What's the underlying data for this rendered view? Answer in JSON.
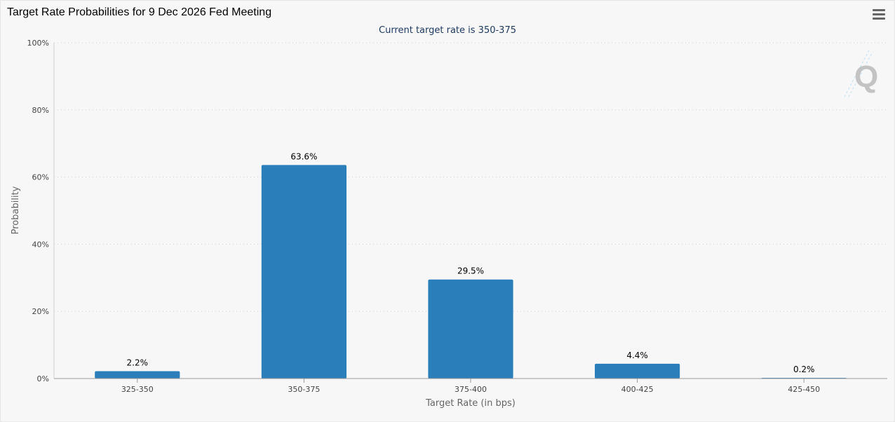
{
  "header": {
    "title": "Target Rate Probabilities for 9 Dec 2026 Fed Meeting",
    "menu_icon": "hamburger-menu-icon",
    "watermark_icon": "q-logo-icon"
  },
  "colors": {
    "bar": "#2a7fba",
    "grid": "#d0d0d0",
    "axis": "#999999"
  },
  "chart_data": {
    "type": "bar",
    "title": "Target Rate Probabilities for 9 Dec 2026 Fed Meeting",
    "subtitle": "Current target rate is 350-375",
    "xlabel": "Target Rate (in bps)",
    "ylabel": "Probability",
    "categories": [
      "325-350",
      "350-375",
      "375-400",
      "400-425",
      "425-450"
    ],
    "values": [
      2.2,
      63.6,
      29.5,
      4.4,
      0.2
    ],
    "data_labels": [
      "2.2%",
      "63.6%",
      "29.5%",
      "4.4%",
      "0.2%"
    ],
    "ylim": [
      0,
      100
    ],
    "yticks": [
      0,
      20,
      40,
      60,
      80,
      100
    ],
    "ytick_labels": [
      "0%",
      "20%",
      "40%",
      "60%",
      "80%",
      "100%"
    ],
    "grid": true,
    "legend": "none"
  }
}
